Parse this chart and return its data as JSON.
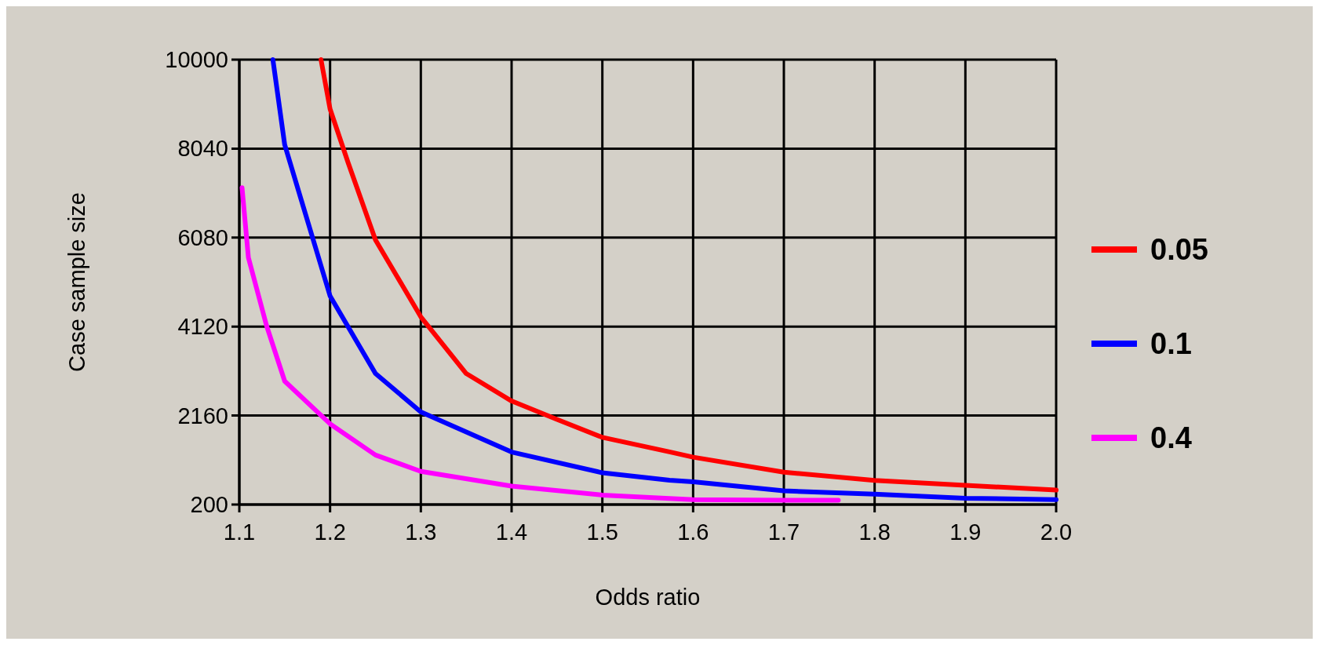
{
  "chart_data": {
    "type": "line",
    "xlabel": "Odds ratio",
    "ylabel": "Case sample size",
    "xlim": [
      1.1,
      2.0
    ],
    "xticks": [
      1.1,
      1.2,
      1.3,
      1.4,
      1.5,
      1.6,
      1.7,
      1.8,
      1.9,
      {
        "value": 2.0,
        "label": "2.0"
      }
    ],
    "ylim": [
      200,
      10000
    ],
    "yticks": [
      200,
      2160,
      4120,
      6080,
      8040,
      10000
    ],
    "grid": true,
    "legend": "right",
    "marker": "none",
    "line_style": "solid",
    "series": [
      {
        "name": "0.05",
        "color": "#ff0000",
        "x": [
          1.19,
          1.2,
          1.22,
          1.25,
          1.3,
          1.35,
          1.4,
          1.45,
          1.5,
          1.574,
          1.6,
          1.7,
          1.8,
          1.9,
          2.0
        ],
        "values": [
          10000,
          8910,
          7722,
          6030,
          4335,
          3086,
          2480,
          2075,
          1680,
          1360,
          1243,
          912,
          731,
          622,
          520
        ]
      },
      {
        "name": "0.1",
        "color": "#0000ff",
        "x": [
          1.137,
          1.15,
          1.2,
          1.25,
          1.3,
          1.4,
          1.5,
          1.574,
          1.6,
          1.7,
          1.8,
          1.9,
          2.0
        ],
        "values": [
          10000,
          8125,
          4793,
          3086,
          2240,
          1356,
          900,
          737,
          700,
          502,
          429,
          339,
          309
        ]
      },
      {
        "name": "0.4",
        "color": "#ff00ff",
        "x": [
          1.103,
          1.11,
          1.13,
          1.15,
          1.2,
          1.25,
          1.3,
          1.4,
          1.5,
          1.6,
          1.7,
          1.76
        ],
        "values": [
          7180,
          5640,
          4140,
          2917,
          1977,
          1291,
          931,
          605,
          409,
          308,
          296,
          296
        ]
      }
    ]
  }
}
